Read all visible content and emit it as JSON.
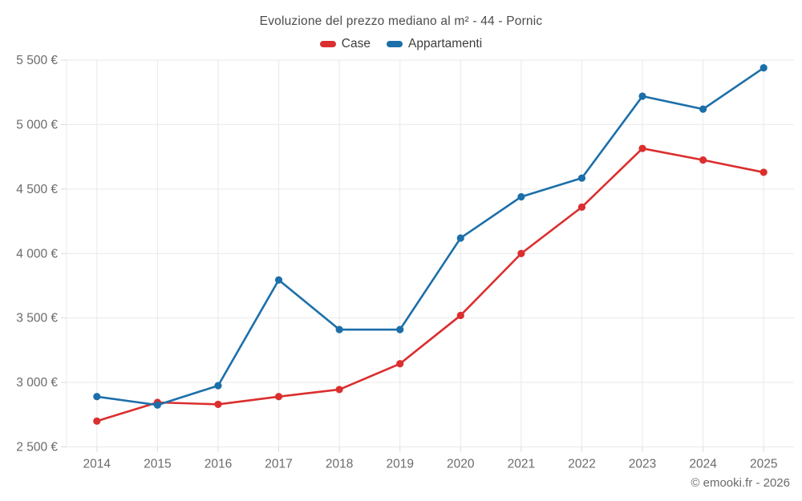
{
  "title": "Evoluzione del prezzo mediano al m² - 44 - Pornic",
  "legend": [
    {
      "label": "Case",
      "color": "#db2e2e"
    },
    {
      "label": "Appartamenti",
      "color": "#1c6fa9"
    }
  ],
  "footer": "© emooki.fr - 2026",
  "colors": {
    "case_red": "#db2e2e",
    "appartamenti_blue": "#1c6fa9",
    "grid": "#e9e9e9",
    "tick": "#d9d9d9",
    "axis_text": "#6b6b6b"
  },
  "chart_data": {
    "type": "line",
    "title": "Evoluzione del prezzo mediano al m² - 44 - Pornic",
    "xlabel": "",
    "ylabel": "",
    "grid": true,
    "legend_position": "top",
    "categories": [
      "2014",
      "2015",
      "2016",
      "2017",
      "2018",
      "2019",
      "2020",
      "2021",
      "2022",
      "2023",
      "2024",
      "2025"
    ],
    "series": [
      {
        "name": "Case",
        "color": "#db2e2e",
        "values": [
          2700,
          2845,
          2830,
          2890,
          2945,
          3145,
          3520,
          4000,
          4360,
          4815,
          4725,
          4630
        ]
      },
      {
        "name": "Appartamenti",
        "color": "#1c6fa9",
        "values": [
          2890,
          2825,
          2975,
          3795,
          3410,
          3410,
          4120,
          4440,
          4585,
          5220,
          5120,
          5440
        ]
      }
    ],
    "ylim": [
      2500,
      5500
    ],
    "yticks": [
      {
        "value": 2500,
        "label": "2 500 €"
      },
      {
        "value": 3000,
        "label": "3 000 €"
      },
      {
        "value": 3500,
        "label": "3 500 €"
      },
      {
        "value": 4000,
        "label": "4 000 €"
      },
      {
        "value": 4500,
        "label": "4 500 €"
      },
      {
        "value": 5000,
        "label": "5 000 €"
      },
      {
        "value": 5500,
        "label": "5 500 €"
      }
    ]
  }
}
